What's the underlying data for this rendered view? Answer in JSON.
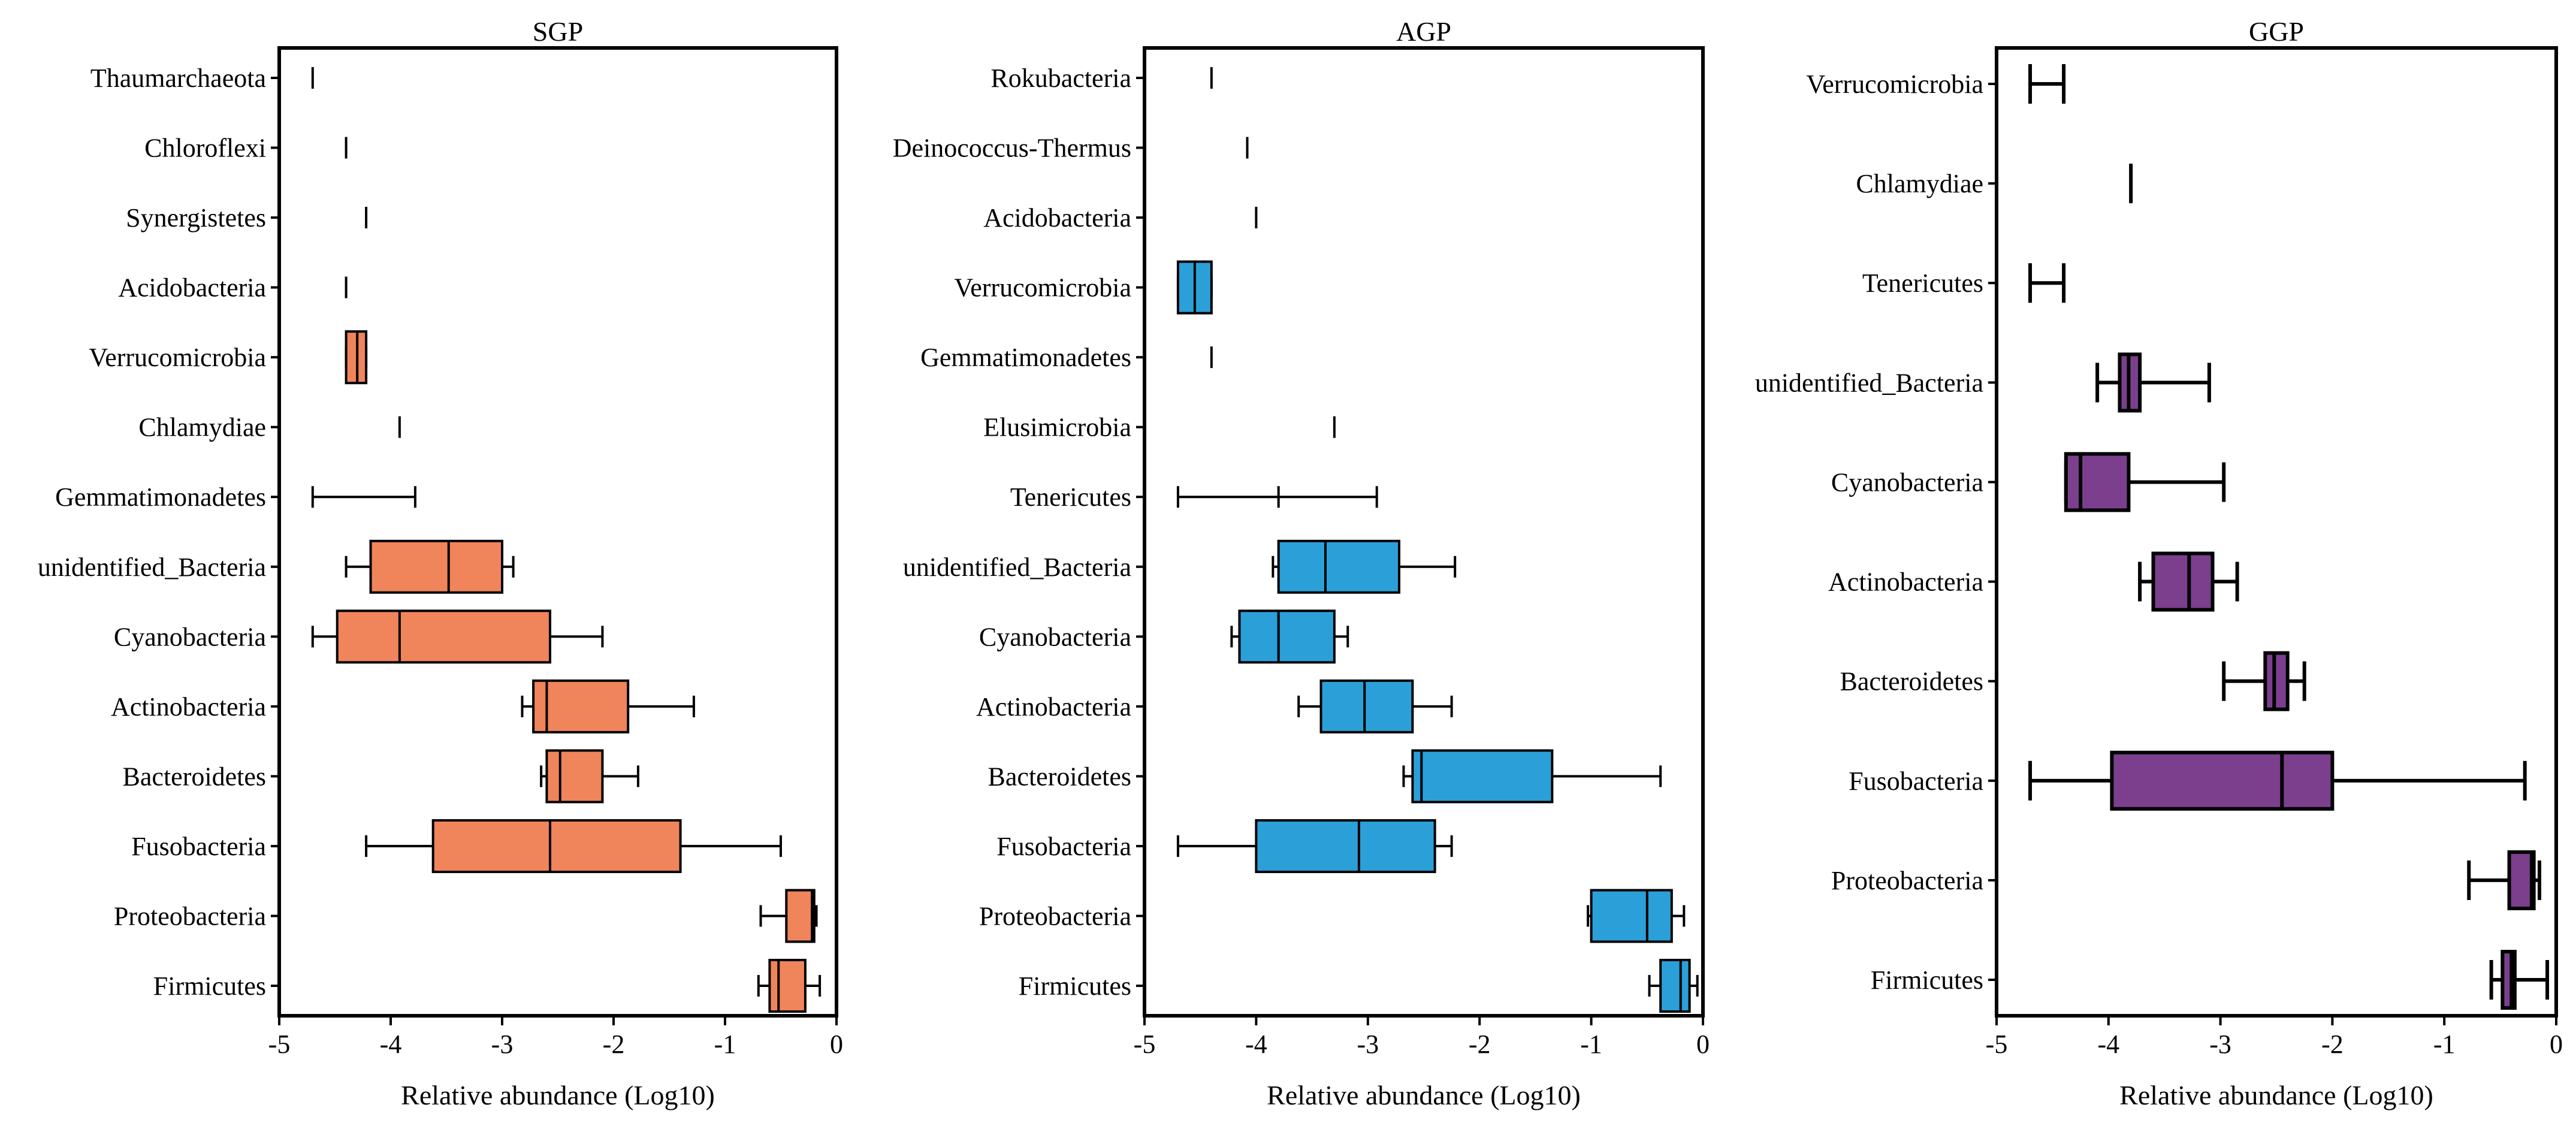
{
  "chart_data": [
    {
      "type": "box",
      "title": "SGP",
      "xlabel": "Relative  abundance (Log10)",
      "xlim": [
        -5,
        0
      ],
      "xticks": [
        "-5",
        "-4",
        "-3",
        "-2",
        "-1",
        "0"
      ],
      "color": "#f0845a",
      "categories": [
        "Thaumarchaeota",
        "Chloroflexi",
        "Synergistetes",
        "Acidobacteria",
        "Verrucomicrobia",
        "Chlamydiae",
        "Gemmatimonadetes",
        "unidentified_Bacteria",
        "Cyanobacteria",
        "Actinobacteria",
        "Bacteroidetes",
        "Fusobacteria",
        "Proteobacteria",
        "Firmicutes"
      ],
      "stats": [
        {
          "min": -4.7,
          "q1": -4.7,
          "median": -4.7,
          "q3": -4.7,
          "max": -4.7
        },
        {
          "min": -4.4,
          "q1": -4.4,
          "median": -4.4,
          "q3": -4.4,
          "max": -4.4
        },
        {
          "min": -4.22,
          "q1": -4.22,
          "median": -4.22,
          "q3": -4.22,
          "max": -4.22
        },
        {
          "min": -4.4,
          "q1": -4.4,
          "median": -4.4,
          "q3": -4.4,
          "max": -4.4
        },
        {
          "min": -4.4,
          "q1": -4.4,
          "median": -4.3,
          "q3": -4.22,
          "max": -4.22
        },
        {
          "min": -3.92,
          "q1": -3.92,
          "median": -3.92,
          "q3": -3.92,
          "max": -3.92
        },
        {
          "min": -4.7,
          "q1": -4.7,
          "median": -4.7,
          "q3": -4.7,
          "max": -3.78
        },
        {
          "min": -4.4,
          "q1": -4.18,
          "median": -3.48,
          "q3": -3.0,
          "max": -2.9
        },
        {
          "min": -4.7,
          "q1": -4.48,
          "median": -3.92,
          "q3": -2.57,
          "max": -2.1
        },
        {
          "min": -2.82,
          "q1": -2.72,
          "median": -2.6,
          "q3": -1.87,
          "max": -1.28
        },
        {
          "min": -2.65,
          "q1": -2.6,
          "median": -2.48,
          "q3": -2.1,
          "max": -1.78
        },
        {
          "min": -4.22,
          "q1": -3.62,
          "median": -2.57,
          "q3": -1.4,
          "max": -0.5
        },
        {
          "min": -0.68,
          "q1": -0.45,
          "median": -0.22,
          "q3": -0.2,
          "max": -0.18
        },
        {
          "min": -0.7,
          "q1": -0.6,
          "median": -0.52,
          "q3": -0.28,
          "max": -0.15
        }
      ]
    },
    {
      "type": "box",
      "title": "AGP",
      "xlabel": "Relative  abundance (Log10)",
      "xlim": [
        -5,
        0
      ],
      "xticks": [
        "-5",
        "-4",
        "-3",
        "-2",
        "-1",
        "0"
      ],
      "color": "#2b9fd8",
      "categories": [
        "Rokubacteria",
        "Deinococcus-Thermus",
        "Acidobacteria",
        "Verrucomicrobia",
        "Gemmatimonadetes",
        "Elusimicrobia",
        "Tenericutes",
        "unidentified_Bacteria",
        "Cyanobacteria",
        "Actinobacteria",
        "Bacteroidetes",
        "Fusobacteria",
        "Proteobacteria",
        "Firmicutes"
      ],
      "stats": [
        {
          "min": -4.4,
          "q1": -4.4,
          "median": -4.4,
          "q3": -4.4,
          "max": -4.4
        },
        {
          "min": -4.08,
          "q1": -4.08,
          "median": -4.08,
          "q3": -4.08,
          "max": -4.08
        },
        {
          "min": -4.0,
          "q1": -4.0,
          "median": -4.0,
          "q3": -4.0,
          "max": -4.0
        },
        {
          "min": -4.7,
          "q1": -4.7,
          "median": -4.55,
          "q3": -4.4,
          "max": -4.4
        },
        {
          "min": -4.4,
          "q1": -4.4,
          "median": -4.4,
          "q3": -4.4,
          "max": -4.4
        },
        {
          "min": -3.3,
          "q1": -3.3,
          "median": -3.3,
          "q3": -3.3,
          "max": -3.3
        },
        {
          "min": -4.7,
          "q1": -3.8,
          "median": -3.8,
          "q3": -3.8,
          "max": -2.92
        },
        {
          "min": -3.85,
          "q1": -3.8,
          "median": -3.38,
          "q3": -2.72,
          "max": -2.22
        },
        {
          "min": -4.22,
          "q1": -4.15,
          "median": -3.8,
          "q3": -3.3,
          "max": -3.18
        },
        {
          "min": -3.62,
          "q1": -3.42,
          "median": -3.03,
          "q3": -2.6,
          "max": -2.25
        },
        {
          "min": -2.68,
          "q1": -2.6,
          "median": -2.52,
          "q3": -1.35,
          "max": -0.38
        },
        {
          "min": -4.7,
          "q1": -4.0,
          "median": -3.08,
          "q3": -2.4,
          "max": -2.25
        },
        {
          "min": -1.03,
          "q1": -1.0,
          "median": -0.5,
          "q3": -0.28,
          "max": -0.17
        },
        {
          "min": -0.48,
          "q1": -0.38,
          "median": -0.2,
          "q3": -0.12,
          "max": -0.05
        }
      ]
    },
    {
      "type": "box",
      "title": "GGP",
      "xlabel": "Relative  abundance (Log10)",
      "xlim": [
        -5,
        0
      ],
      "xticks": [
        "-5",
        "-4",
        "-3",
        "-2",
        "-1",
        "0"
      ],
      "color": "#7b3f8e",
      "categories": [
        "Verrucomicrobia",
        "Chlamydiae",
        "Tenericutes",
        "unidentified_Bacteria",
        "Cyanobacteria",
        "Actinobacteria",
        "Bacteroidetes",
        "Fusobacteria",
        "Proteobacteria",
        "Firmicutes"
      ],
      "stats": [
        {
          "min": -4.7,
          "q1": -4.7,
          "median": -4.7,
          "q3": -4.7,
          "max": -4.4
        },
        {
          "min": -3.8,
          "q1": -3.8,
          "median": -3.8,
          "q3": -3.8,
          "max": -3.8
        },
        {
          "min": -4.7,
          "q1": -4.7,
          "median": -4.7,
          "q3": -4.7,
          "max": -4.4
        },
        {
          "min": -4.1,
          "q1": -3.9,
          "median": -3.82,
          "q3": -3.72,
          "max": -3.1
        },
        {
          "min": -4.38,
          "q1": -4.38,
          "median": -4.25,
          "q3": -3.82,
          "max": -2.97
        },
        {
          "min": -3.72,
          "q1": -3.6,
          "median": -3.28,
          "q3": -3.07,
          "max": -2.85
        },
        {
          "min": -2.97,
          "q1": -2.6,
          "median": -2.52,
          "q3": -2.4,
          "max": -2.25
        },
        {
          "min": -4.7,
          "q1": -3.97,
          "median": -2.45,
          "q3": -2.0,
          "max": -0.28
        },
        {
          "min": -0.78,
          "q1": -0.42,
          "median": -0.22,
          "q3": -0.2,
          "max": -0.15
        },
        {
          "min": -0.58,
          "q1": -0.48,
          "median": -0.4,
          "q3": -0.37,
          "max": -0.08
        }
      ]
    }
  ]
}
